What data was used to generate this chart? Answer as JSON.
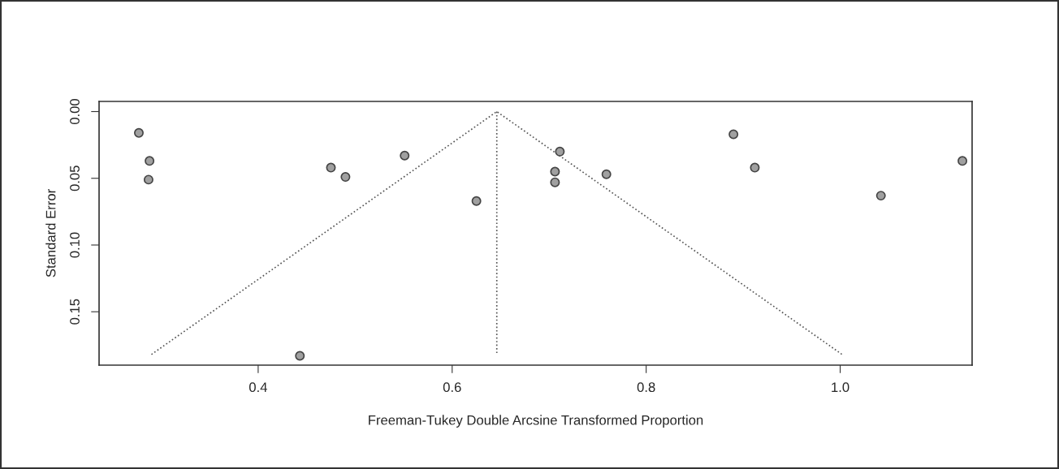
{
  "chart_data": {
    "type": "scatter",
    "xlabel": "Freeman-Tukey Double Arcsine Transformed Proportion",
    "ylabel": "Standard Error",
    "xlim": [
      0.236,
      1.136
    ],
    "ylim": [
      0.19,
      -0.0076
    ],
    "xticks": [
      0.4,
      0.6,
      0.8,
      {
        "value": 1,
        "label": "1.0"
      }
    ],
    "yticks": [
      {
        "value": 0,
        "label": "0.00"
      },
      {
        "value": 0.05,
        "label": "0.05"
      },
      {
        "value": 0.1,
        "label": "0.10"
      },
      {
        "value": 0.15,
        "label": "0.15"
      }
    ],
    "grid": false,
    "marker": "circle",
    "series": [
      {
        "color": "#a0a0a0",
        "x": [
          0.277,
          0.288,
          0.287,
          0.475,
          0.49,
          0.551,
          0.625,
          0.443,
          0.711,
          0.706,
          0.706,
          0.759,
          0.89,
          0.912,
          1.042,
          1.126
        ],
        "values": [
          0.016,
          0.037,
          0.051,
          0.042,
          0.049,
          0.033,
          0.067,
          0.183,
          0.03,
          0.045,
          0.053,
          0.047,
          0.017,
          0.042,
          0.063,
          0.037
        ]
      },
      {
        "type": "line",
        "color": "#555555",
        "line_style": "dotted",
        "marker": "none",
        "x": [
          0.29,
          0.646,
          1.002
        ],
        "values": [
          0.182,
          0,
          0.182
        ]
      },
      {
        "type": "line",
        "color": "#555555",
        "line_style": "dotted",
        "marker": "none",
        "x": [
          0.646,
          0.646
        ],
        "values": [
          0,
          0.182
        ]
      }
    ]
  }
}
